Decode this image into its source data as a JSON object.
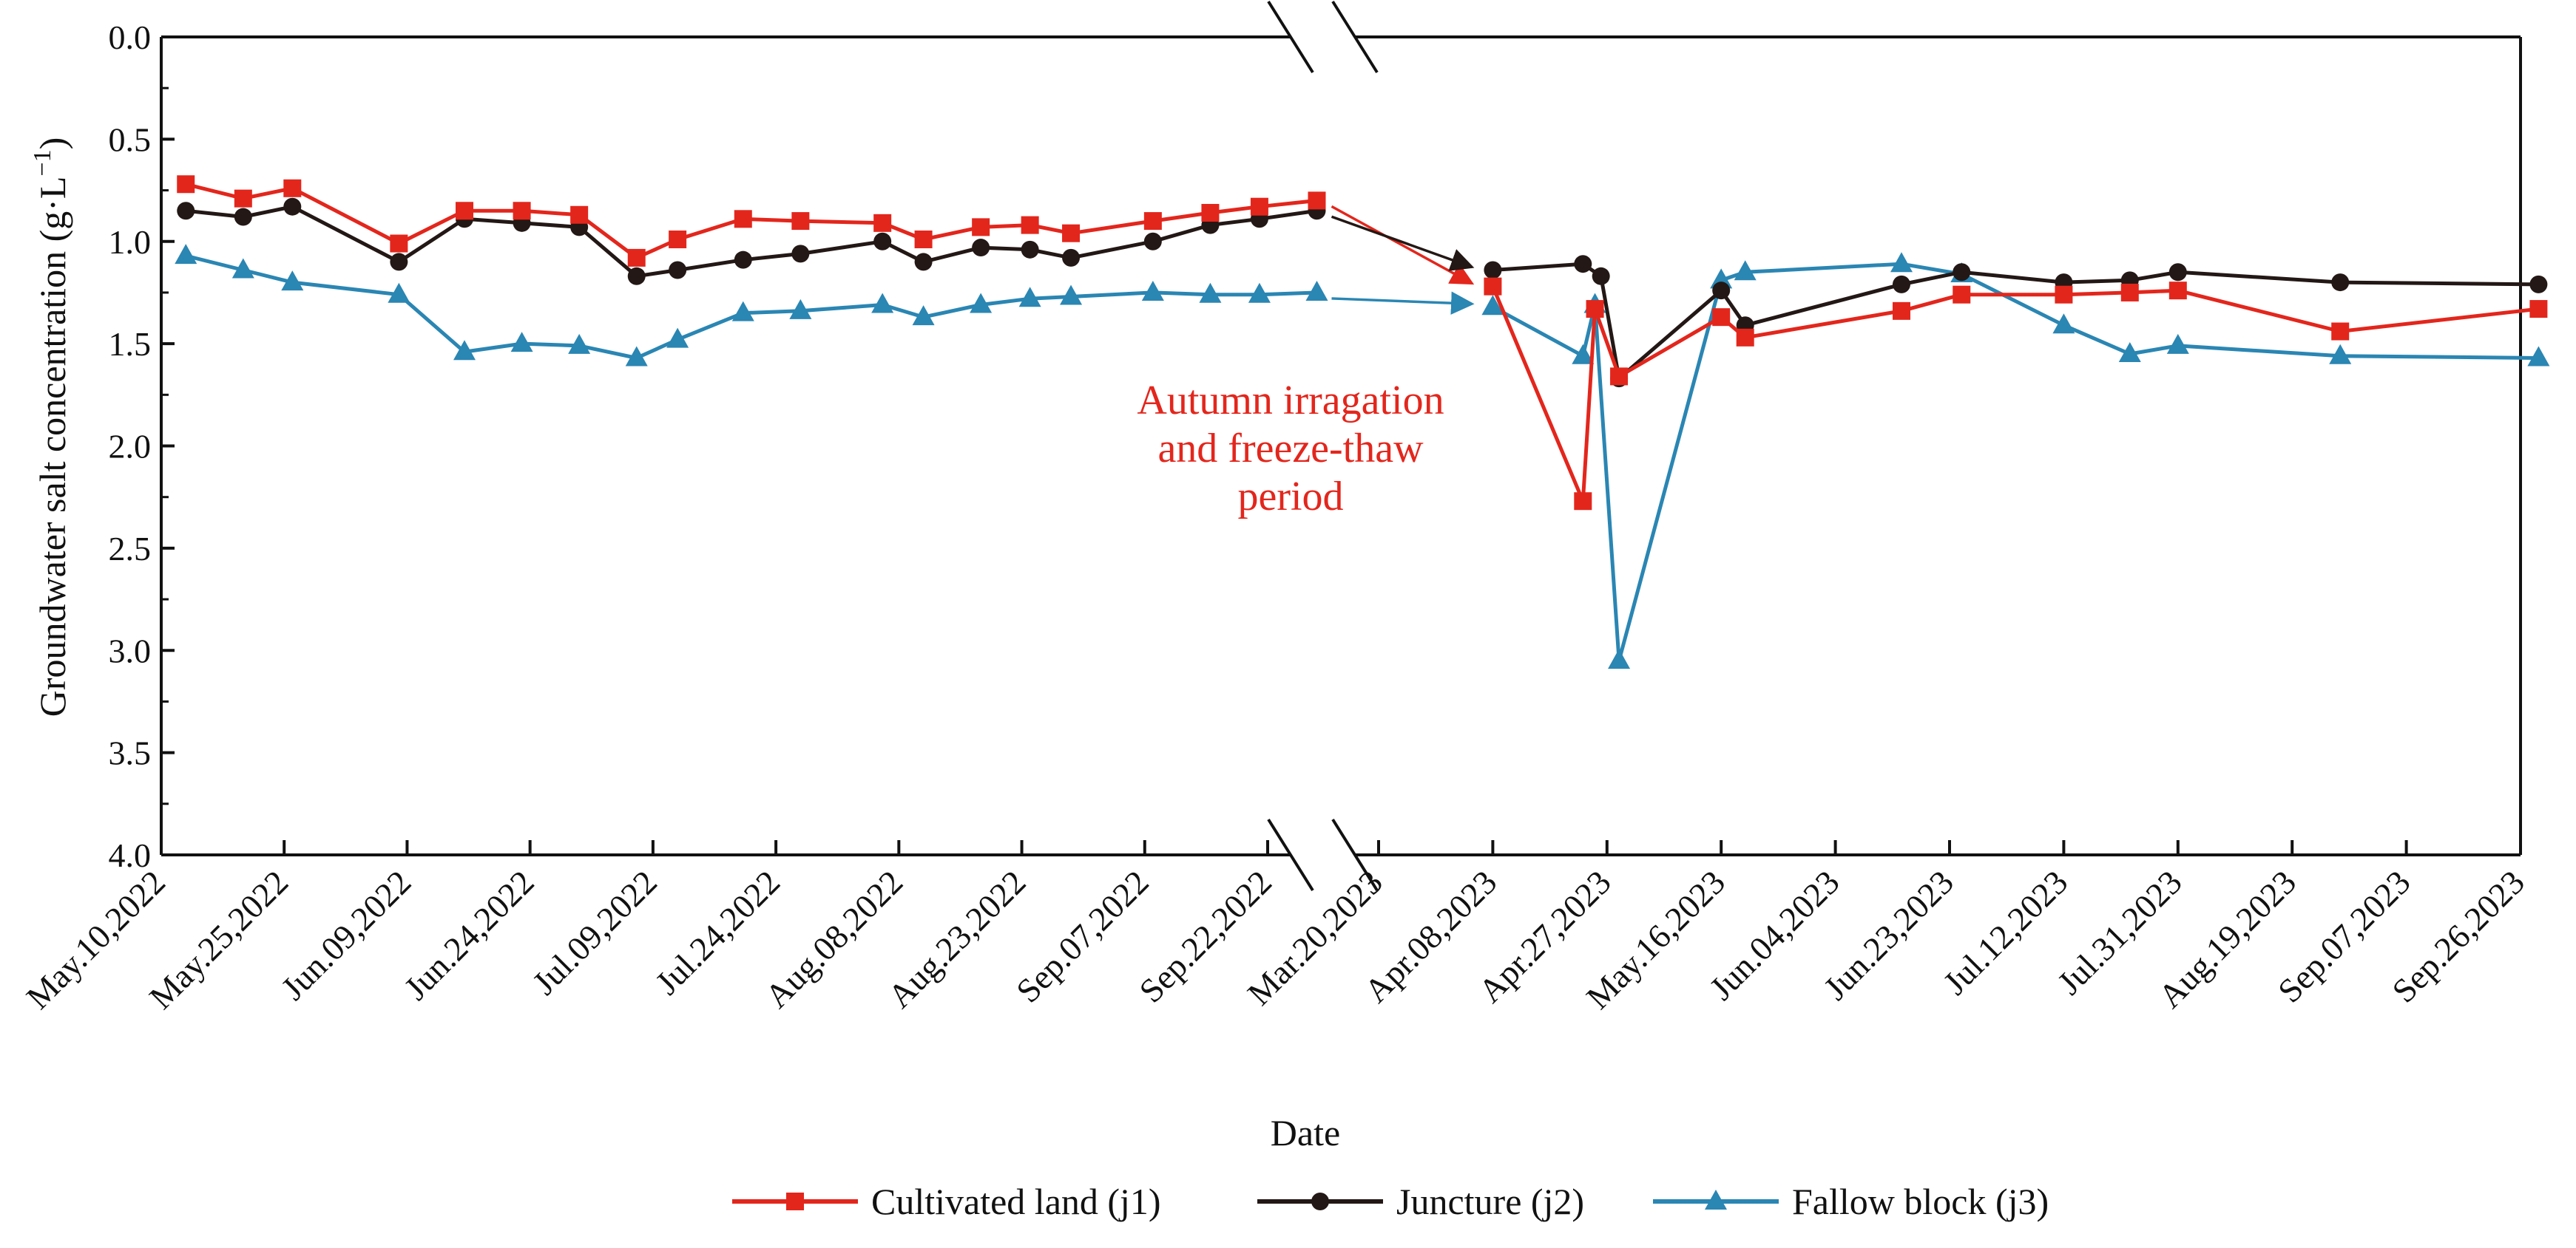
{
  "chart_data": {
    "type": "line",
    "xlabel": "Date",
    "ylabel": "Groundwater salt concentration (g·L",
    "ylabel_exp": "−1",
    "ylabel_close": ")",
    "ylim": [
      4.0,
      0.0
    ],
    "y_inverted": true,
    "yticks": [
      "0.0",
      "0.5",
      "1.0",
      "1.5",
      "2.0",
      "2.5",
      "3.0",
      "3.5",
      "4.0"
    ],
    "axis_break": {
      "between": [
        "2022-09-22",
        "2023-03-20"
      ]
    },
    "segments": [
      {
        "from": "2022-05-10",
        "to": "2022-10-07"
      },
      {
        "from": "2023-03-20",
        "to": "2023-10-15"
      }
    ],
    "xticks": [
      {
        "date": "2022-05-10",
        "label": "May.10,2022"
      },
      {
        "date": "2022-05-25",
        "label": "May.25,2022"
      },
      {
        "date": "2022-06-09",
        "label": "Jun.09,2022"
      },
      {
        "date": "2022-06-24",
        "label": "Jun.24,2022"
      },
      {
        "date": "2022-07-09",
        "label": "Jul.09,2022"
      },
      {
        "date": "2022-07-24",
        "label": "Jul.24,2022"
      },
      {
        "date": "2022-08-08",
        "label": "Aug.08,2022"
      },
      {
        "date": "2022-08-23",
        "label": "Aug.23,2022"
      },
      {
        "date": "2022-09-07",
        "label": "Sep.07,2022"
      },
      {
        "date": "2022-09-22",
        "label": "Sep.22,2022"
      },
      {
        "date": "2023-03-20",
        "label": "Mar.20,2023"
      },
      {
        "date": "2023-04-08",
        "label": "Apr.08,2023"
      },
      {
        "date": "2023-04-27",
        "label": "Apr.27,2023"
      },
      {
        "date": "2023-05-16",
        "label": "May.16,2023"
      },
      {
        "date": "2023-06-04",
        "label": "Jun.04,2023"
      },
      {
        "date": "2023-06-23",
        "label": "Jun.23,2023"
      },
      {
        "date": "2023-07-12",
        "label": "Jul.12,2023"
      },
      {
        "date": "2023-07-31",
        "label": "Jul.31,2023"
      },
      {
        "date": "2023-08-19",
        "label": "Aug.19,2023"
      },
      {
        "date": "2023-09-07",
        "label": "Sep.07,2023"
      },
      {
        "date": "2023-09-26",
        "label": "Sep.26,2023"
      }
    ],
    "annotation": {
      "lines": [
        "Autumn irragation",
        "and freeze-thaw",
        "period"
      ],
      "color": "#e3261c"
    },
    "series": [
      {
        "name": "Cultivated land (j1)",
        "color": "#e3261c",
        "marker": "square",
        "points": [
          [
            "2022-05-13",
            0.72
          ],
          [
            "2022-05-20",
            0.79
          ],
          [
            "2022-05-26",
            0.74
          ],
          [
            "2022-06-08",
            1.01
          ],
          [
            "2022-06-16",
            0.85
          ],
          [
            "2022-06-23",
            0.85
          ],
          [
            "2022-06-30",
            0.87
          ],
          [
            "2022-07-07",
            1.08
          ],
          [
            "2022-07-12",
            0.99
          ],
          [
            "2022-07-20",
            0.89
          ],
          [
            "2022-07-27",
            0.9
          ],
          [
            "2022-08-06",
            0.91
          ],
          [
            "2022-08-11",
            0.99
          ],
          [
            "2022-08-18",
            0.93
          ],
          [
            "2022-08-24",
            0.92
          ],
          [
            "2022-08-29",
            0.96
          ],
          [
            "2022-09-08",
            0.9
          ],
          [
            "2022-09-15",
            0.86
          ],
          [
            "2022-09-21",
            0.83
          ],
          [
            "2022-09-28",
            0.8
          ],
          [
            "2023-04-08",
            1.22
          ],
          [
            "2023-04-23",
            2.27
          ],
          [
            "2023-04-25",
            1.33
          ],
          [
            "2023-04-29",
            1.66
          ],
          [
            "2023-05-16",
            1.37
          ],
          [
            "2023-05-20",
            1.47
          ],
          [
            "2023-06-15",
            1.34
          ],
          [
            "2023-06-25",
            1.26
          ],
          [
            "2023-07-12",
            1.26
          ],
          [
            "2023-07-23",
            1.25
          ],
          [
            "2023-07-31",
            1.24
          ],
          [
            "2023-08-27",
            1.44
          ],
          [
            "2023-09-29",
            1.33
          ]
        ]
      },
      {
        "name": "Juncture (j2)",
        "color": "#231815",
        "marker": "circle",
        "points": [
          [
            "2022-05-13",
            0.85
          ],
          [
            "2022-05-20",
            0.88
          ],
          [
            "2022-05-26",
            0.83
          ],
          [
            "2022-06-08",
            1.1
          ],
          [
            "2022-06-16",
            0.89
          ],
          [
            "2022-06-23",
            0.91
          ],
          [
            "2022-06-30",
            0.93
          ],
          [
            "2022-07-07",
            1.17
          ],
          [
            "2022-07-12",
            1.14
          ],
          [
            "2022-07-20",
            1.09
          ],
          [
            "2022-07-27",
            1.06
          ],
          [
            "2022-08-06",
            1.0
          ],
          [
            "2022-08-11",
            1.1
          ],
          [
            "2022-08-18",
            1.03
          ],
          [
            "2022-08-24",
            1.04
          ],
          [
            "2022-08-29",
            1.08
          ],
          [
            "2022-09-08",
            1.0
          ],
          [
            "2022-09-15",
            0.92
          ],
          [
            "2022-09-21",
            0.89
          ],
          [
            "2022-09-28",
            0.85
          ],
          [
            "2023-04-08",
            1.14
          ],
          [
            "2023-04-23",
            1.11
          ],
          [
            "2023-04-26",
            1.17
          ],
          [
            "2023-04-29",
            1.67
          ],
          [
            "2023-05-16",
            1.24
          ],
          [
            "2023-05-20",
            1.41
          ],
          [
            "2023-06-15",
            1.21
          ],
          [
            "2023-06-25",
            1.15
          ],
          [
            "2023-07-12",
            1.2
          ],
          [
            "2023-07-23",
            1.19
          ],
          [
            "2023-07-31",
            1.15
          ],
          [
            "2023-08-27",
            1.2
          ],
          [
            "2023-09-29",
            1.21
          ]
        ]
      },
      {
        "name": "Fallow block (j3)",
        "color": "#2a86b3",
        "marker": "triangle",
        "points": [
          [
            "2022-05-13",
            1.07
          ],
          [
            "2022-05-20",
            1.14
          ],
          [
            "2022-05-26",
            1.2
          ],
          [
            "2022-06-08",
            1.26
          ],
          [
            "2022-06-16",
            1.54
          ],
          [
            "2022-06-23",
            1.5
          ],
          [
            "2022-06-30",
            1.51
          ],
          [
            "2022-07-07",
            1.57
          ],
          [
            "2022-07-12",
            1.48
          ],
          [
            "2022-07-20",
            1.35
          ],
          [
            "2022-07-27",
            1.34
          ],
          [
            "2022-08-06",
            1.31
          ],
          [
            "2022-08-11",
            1.37
          ],
          [
            "2022-08-18",
            1.31
          ],
          [
            "2022-08-24",
            1.28
          ],
          [
            "2022-08-29",
            1.27
          ],
          [
            "2022-09-08",
            1.25
          ],
          [
            "2022-09-15",
            1.26
          ],
          [
            "2022-09-21",
            1.26
          ],
          [
            "2022-09-28",
            1.25
          ],
          [
            "2023-04-08",
            1.32
          ],
          [
            "2023-04-23",
            1.56
          ],
          [
            "2023-04-25",
            1.31
          ],
          [
            "2023-04-29",
            3.05
          ],
          [
            "2023-05-16",
            1.19
          ],
          [
            "2023-05-20",
            1.15
          ],
          [
            "2023-06-15",
            1.11
          ],
          [
            "2023-06-25",
            1.16
          ],
          [
            "2023-07-12",
            1.41
          ],
          [
            "2023-07-23",
            1.55
          ],
          [
            "2023-07-31",
            1.51
          ],
          [
            "2023-08-27",
            1.56
          ],
          [
            "2023-09-29",
            1.57
          ]
        ]
      }
    ],
    "legend": {
      "position": "bottom-center"
    },
    "grid": false
  }
}
